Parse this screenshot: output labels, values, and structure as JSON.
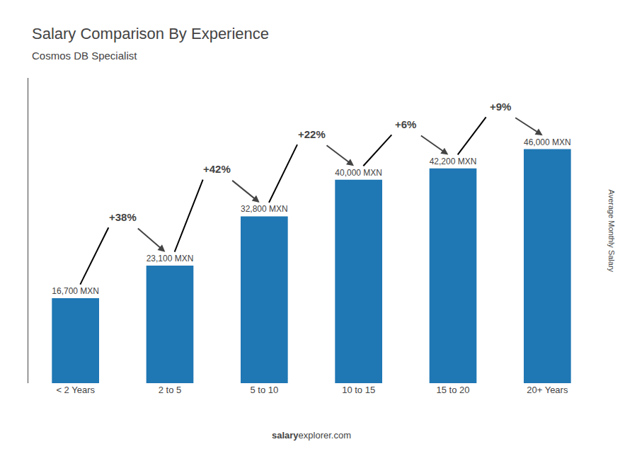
{
  "chart_data": {
    "type": "bar",
    "title": "Salary Comparison By Experience",
    "subtitle": "Cosmos DB Specialist",
    "ylabel": "Average Monthly Salary",
    "categories": [
      "< 2 Years",
      "2 to 5",
      "5 to 10",
      "10 to 15",
      "15 to 20",
      "20+ Years"
    ],
    "values": [
      16700,
      23100,
      32800,
      40000,
      42200,
      46000
    ],
    "value_labels": [
      "16,700 MXN",
      "23,100 MXN",
      "32,800 MXN",
      "40,000 MXN",
      "42,200 MXN",
      "46,000 MXN"
    ],
    "data_labels": true,
    "annotations": [
      "+38%",
      "+42%",
      "+22%",
      "+6%",
      "+9%"
    ],
    "footer": [
      "salary",
      "explorer.com"
    ],
    "ylim": [
      0,
      60000
    ],
    "tick_labels": "x",
    "grid": false
  }
}
